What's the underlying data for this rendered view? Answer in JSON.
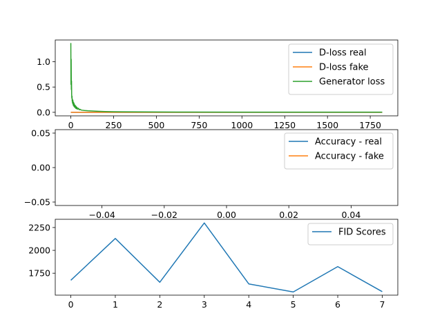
{
  "chart_data": [
    {
      "type": "line",
      "title": "",
      "xlabel": "",
      "ylabel": "",
      "xlim": [
        -91,
        1911
      ],
      "ylim": [
        -0.07,
        1.43
      ],
      "xticks": [
        0,
        250,
        500,
        750,
        1000,
        1250,
        1500,
        1750
      ],
      "yticks": [
        0.0,
        0.5,
        1.0
      ],
      "xtick_labels": [
        "0",
        "250",
        "500",
        "750",
        "1000",
        "1250",
        "1500",
        "1750"
      ],
      "ytick_labels": [
        "0.0",
        "0.5",
        "1.0"
      ],
      "legend_position": "top-right",
      "series": [
        {
          "name": "D-loss real",
          "color": "#1f77b4",
          "x": [
            0,
            1820
          ],
          "y": [
            0.0,
            0.0
          ]
        },
        {
          "name": "D-loss fake",
          "color": "#ff7f0e",
          "x": [
            0,
            1820
          ],
          "y": [
            0.0,
            0.0
          ]
        },
        {
          "name": "Generator loss",
          "color": "#2ca02c",
          "x": [
            0,
            1,
            2,
            3,
            4,
            5,
            6,
            7,
            8,
            9,
            10,
            12,
            14,
            16,
            18,
            20,
            22,
            25,
            28,
            30,
            33,
            36,
            40,
            45,
            50,
            55,
            60,
            70,
            80,
            100,
            130,
            160,
            200,
            250,
            300,
            400,
            500,
            700,
            1000,
            1300,
            1600,
            1820
          ],
          "y": [
            1.37,
            0.55,
            1.05,
            0.45,
            0.62,
            0.35,
            0.28,
            0.32,
            0.22,
            0.26,
            0.18,
            0.24,
            0.14,
            0.2,
            0.12,
            0.17,
            0.1,
            0.14,
            0.08,
            0.12,
            0.07,
            0.1,
            0.06,
            0.08,
            0.05,
            0.06,
            0.045,
            0.04,
            0.035,
            0.03,
            0.025,
            0.02,
            0.015,
            0.012,
            0.01,
            0.008,
            0.006,
            0.005,
            0.004,
            0.004,
            0.003,
            0.003
          ]
        }
      ]
    },
    {
      "type": "line",
      "title": "",
      "xlabel": "",
      "ylabel": "",
      "xlim": [
        -0.055,
        0.055
      ],
      "ylim": [
        -0.055,
        0.055
      ],
      "xticks": [
        -0.04,
        -0.02,
        0.0,
        0.02,
        0.04
      ],
      "yticks": [
        -0.05,
        0.0,
        0.05
      ],
      "xtick_labels": [
        "−0.04",
        "−0.02",
        "0.00",
        "0.02",
        "0.04"
      ],
      "ytick_labels": [
        "−0.05",
        "0.00",
        "0.05"
      ],
      "legend_position": "top-right",
      "series": [
        {
          "name": "Accuracy - real",
          "color": "#1f77b4",
          "x": [],
          "y": []
        },
        {
          "name": "Accuracy - fake",
          "color": "#ff7f0e",
          "x": [],
          "y": []
        }
      ]
    },
    {
      "type": "line",
      "title": "",
      "xlabel": "",
      "ylabel": "",
      "xlim": [
        -0.35,
        7.35
      ],
      "ylim": [
        1510,
        2340
      ],
      "xticks": [
        0,
        1,
        2,
        3,
        4,
        5,
        6,
        7
      ],
      "yticks": [
        1750,
        2000,
        2250
      ],
      "xtick_labels": [
        "0",
        "1",
        "2",
        "3",
        "4",
        "5",
        "6",
        "7"
      ],
      "ytick_labels": [
        "1750",
        "2000",
        "2250"
      ],
      "legend_position": "top-right",
      "series": [
        {
          "name": "FID Scores",
          "color": "#1f77b4",
          "x": [
            0,
            1,
            2,
            3,
            4,
            5,
            6,
            7
          ],
          "y": [
            1673,
            2130,
            1651,
            2300,
            1633,
            1545,
            1822,
            1548
          ]
        }
      ]
    }
  ]
}
